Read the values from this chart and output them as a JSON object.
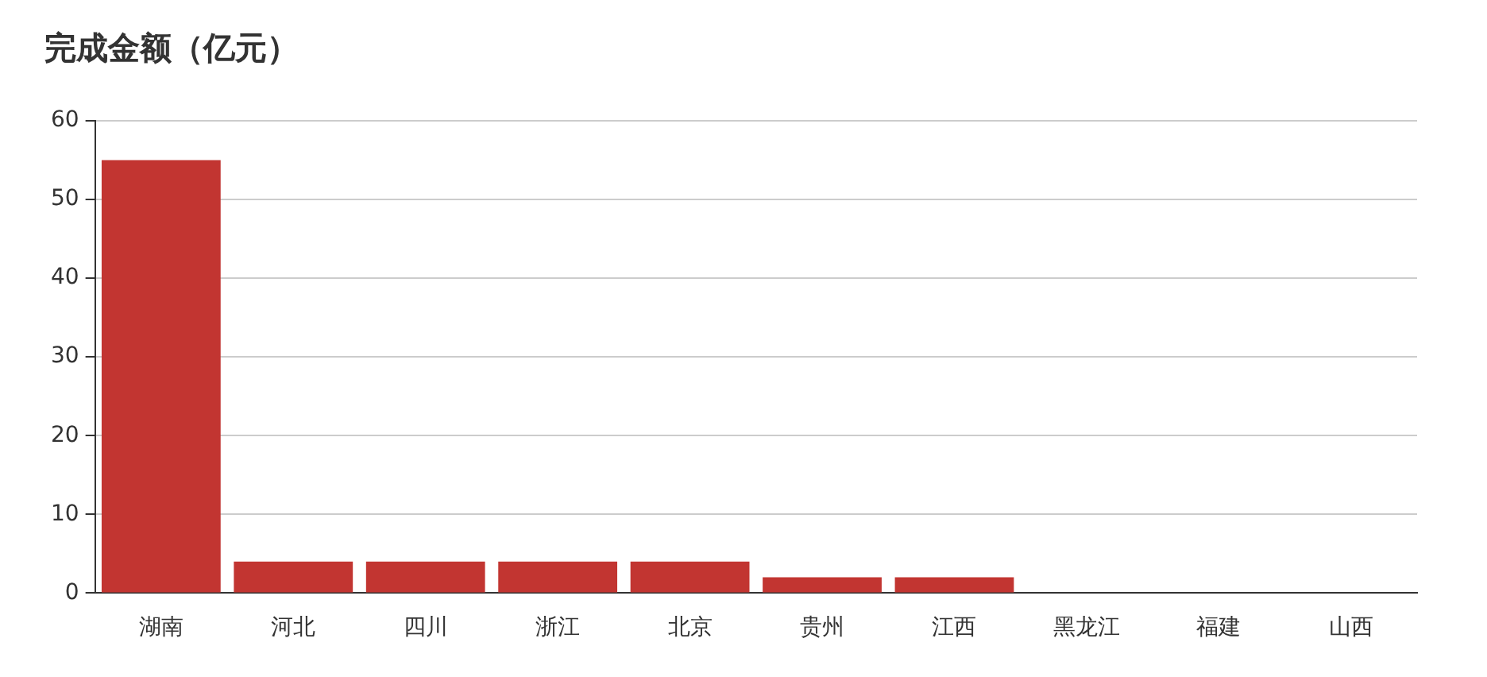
{
  "chart_data": {
    "type": "bar",
    "title": "完成金额（亿元）",
    "categories": [
      "湖南",
      "河北",
      "四川",
      "浙江",
      "北京",
      "贵州",
      "江西",
      "黑龙江",
      "福建",
      "山西"
    ],
    "values": [
      55,
      4,
      4,
      4,
      4,
      2,
      2,
      0,
      0,
      0
    ],
    "color": "#c23531",
    "ylim": [
      0,
      60
    ],
    "yticks": [
      0,
      10,
      20,
      30,
      40,
      50,
      60
    ],
    "grid": "y"
  }
}
